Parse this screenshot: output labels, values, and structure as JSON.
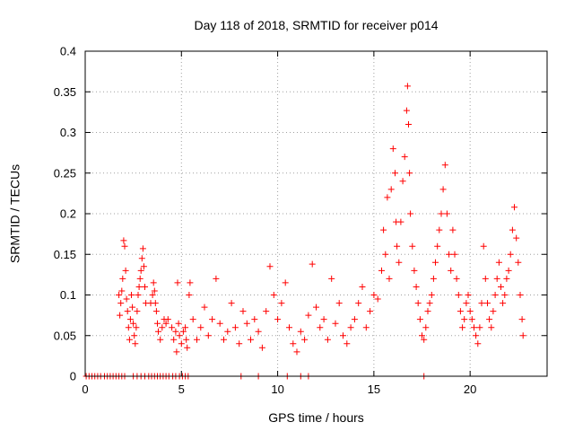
{
  "chart_data": {
    "type": "scatter",
    "title": "Day 118 of 2018, SRMTID for receiver p014",
    "xlabel": "GPS time / hours",
    "ylabel": "SRMTID / TECUs",
    "xlim": [
      0,
      24
    ],
    "ylim": [
      0,
      0.4
    ],
    "x_ticks": [
      0,
      5,
      10,
      15,
      20
    ],
    "x_tick_labels": [
      "0",
      "5",
      "10",
      "15",
      "20"
    ],
    "y_ticks": [
      0,
      0.05,
      0.1,
      0.15,
      0.2,
      0.25,
      0.3,
      0.35,
      0.4
    ],
    "y_tick_labels": [
      "0",
      "0.05",
      "0.1",
      "0.15",
      "0.2",
      "0.25",
      "0.3",
      "0.35",
      "0.4"
    ],
    "grid": true,
    "marker": "+",
    "series": [
      {
        "name": "SRMTID",
        "color": "#ff0000",
        "points": [
          [
            0.05,
            0
          ],
          [
            0.2,
            0
          ],
          [
            0.35,
            0
          ],
          [
            0.5,
            0
          ],
          [
            0.65,
            0
          ],
          [
            0.8,
            0
          ],
          [
            1.0,
            0
          ],
          [
            1.15,
            0
          ],
          [
            1.3,
            0
          ],
          [
            1.45,
            0
          ],
          [
            1.6,
            0
          ],
          [
            1.75,
            0
          ],
          [
            1.9,
            0
          ],
          [
            2.05,
            0
          ],
          [
            2.5,
            0
          ],
          [
            2.7,
            0
          ],
          [
            2.9,
            0
          ],
          [
            3.1,
            0
          ],
          [
            3.3,
            0
          ],
          [
            3.45,
            0
          ],
          [
            3.6,
            0
          ],
          [
            3.75,
            0
          ],
          [
            3.9,
            0
          ],
          [
            4.05,
            0
          ],
          [
            4.2,
            0
          ],
          [
            4.35,
            0
          ],
          [
            4.55,
            0
          ],
          [
            4.7,
            0
          ],
          [
            4.9,
            0
          ],
          [
            5.05,
            0
          ],
          [
            5.2,
            0
          ],
          [
            5.35,
            0
          ],
          [
            8.1,
            0
          ],
          [
            9.0,
            0
          ],
          [
            10.5,
            0
          ],
          [
            11.2,
            0
          ],
          [
            11.6,
            0
          ],
          [
            17.6,
            0
          ],
          [
            1.75,
            0.1
          ],
          [
            1.8,
            0.075
          ],
          [
            1.85,
            0.09
          ],
          [
            1.9,
            0.105
          ],
          [
            1.95,
            0.12
          ],
          [
            2.0,
            0.167
          ],
          [
            2.05,
            0.16
          ],
          [
            2.1,
            0.13
          ],
          [
            2.15,
            0.095
          ],
          [
            2.2,
            0.08
          ],
          [
            2.25,
            0.06
          ],
          [
            2.3,
            0.045
          ],
          [
            2.35,
            0.07
          ],
          [
            2.4,
            0.1
          ],
          [
            2.45,
            0.085
          ],
          [
            2.5,
            0.065
          ],
          [
            2.55,
            0.05
          ],
          [
            2.6,
            0.04
          ],
          [
            2.65,
            0.06
          ],
          [
            2.7,
            0.08
          ],
          [
            2.75,
            0.1
          ],
          [
            2.8,
            0.11
          ],
          [
            2.85,
            0.12
          ],
          [
            2.9,
            0.13
          ],
          [
            2.95,
            0.145
          ],
          [
            3.0,
            0.157
          ],
          [
            3.05,
            0.135
          ],
          [
            3.1,
            0.11
          ],
          [
            3.15,
            0.09
          ],
          [
            3.4,
            0.09
          ],
          [
            3.5,
            0.1
          ],
          [
            3.55,
            0.115
          ],
          [
            3.6,
            0.105
          ],
          [
            3.65,
            0.09
          ],
          [
            3.7,
            0.08
          ],
          [
            3.75,
            0.065
          ],
          [
            3.8,
            0.055
          ],
          [
            3.9,
            0.045
          ],
          [
            4.0,
            0.06
          ],
          [
            4.1,
            0.07
          ],
          [
            4.2,
            0.065
          ],
          [
            4.3,
            0.07
          ],
          [
            4.5,
            0.06
          ],
          [
            4.6,
            0.045
          ],
          [
            4.7,
            0.055
          ],
          [
            4.75,
            0.03
          ],
          [
            4.8,
            0.115
          ],
          [
            4.85,
            0.065
          ],
          [
            4.9,
            0.05
          ],
          [
            5.0,
            0.04
          ],
          [
            5.1,
            0.055
          ],
          [
            5.2,
            0.06
          ],
          [
            5.25,
            0.045
          ],
          [
            5.3,
            0.035
          ],
          [
            5.4,
            0.1
          ],
          [
            5.45,
            0.115
          ],
          [
            5.6,
            0.07
          ],
          [
            5.8,
            0.045
          ],
          [
            6.0,
            0.06
          ],
          [
            6.2,
            0.085
          ],
          [
            6.4,
            0.05
          ],
          [
            6.6,
            0.07
          ],
          [
            6.8,
            0.12
          ],
          [
            7.0,
            0.065
          ],
          [
            7.2,
            0.045
          ],
          [
            7.4,
            0.055
          ],
          [
            7.6,
            0.09
          ],
          [
            7.8,
            0.06
          ],
          [
            8.0,
            0.04
          ],
          [
            8.2,
            0.08
          ],
          [
            8.4,
            0.065
          ],
          [
            8.6,
            0.045
          ],
          [
            8.8,
            0.07
          ],
          [
            9.0,
            0.055
          ],
          [
            9.2,
            0.035
          ],
          [
            9.4,
            0.08
          ],
          [
            9.6,
            0.135
          ],
          [
            9.8,
            0.1
          ],
          [
            10.0,
            0.07
          ],
          [
            10.2,
            0.09
          ],
          [
            10.4,
            0.115
          ],
          [
            10.6,
            0.06
          ],
          [
            10.8,
            0.04
          ],
          [
            11.0,
            0.03
          ],
          [
            11.2,
            0.055
          ],
          [
            11.4,
            0.045
          ],
          [
            11.6,
            0.075
          ],
          [
            11.8,
            0.138
          ],
          [
            12.0,
            0.085
          ],
          [
            12.2,
            0.06
          ],
          [
            12.4,
            0.07
          ],
          [
            12.6,
            0.045
          ],
          [
            12.8,
            0.12
          ],
          [
            13.0,
            0.065
          ],
          [
            13.2,
            0.09
          ],
          [
            13.4,
            0.05
          ],
          [
            13.6,
            0.04
          ],
          [
            13.8,
            0.06
          ],
          [
            14.0,
            0.07
          ],
          [
            14.2,
            0.09
          ],
          [
            14.4,
            0.11
          ],
          [
            14.6,
            0.06
          ],
          [
            14.8,
            0.08
          ],
          [
            15.0,
            0.1
          ],
          [
            15.2,
            0.095
          ],
          [
            15.4,
            0.13
          ],
          [
            15.5,
            0.18
          ],
          [
            15.6,
            0.15
          ],
          [
            15.7,
            0.22
          ],
          [
            15.8,
            0.12
          ],
          [
            15.9,
            0.23
          ],
          [
            16.0,
            0.28
          ],
          [
            16.1,
            0.25
          ],
          [
            16.15,
            0.19
          ],
          [
            16.2,
            0.16
          ],
          [
            16.3,
            0.14
          ],
          [
            16.4,
            0.19
          ],
          [
            16.5,
            0.24
          ],
          [
            16.6,
            0.27
          ],
          [
            16.7,
            0.327
          ],
          [
            16.75,
            0.357
          ],
          [
            16.8,
            0.31
          ],
          [
            16.85,
            0.25
          ],
          [
            16.9,
            0.2
          ],
          [
            17.0,
            0.16
          ],
          [
            17.1,
            0.13
          ],
          [
            17.2,
            0.11
          ],
          [
            17.3,
            0.09
          ],
          [
            17.4,
            0.07
          ],
          [
            17.5,
            0.05
          ],
          [
            17.6,
            0.045
          ],
          [
            17.7,
            0.06
          ],
          [
            17.8,
            0.08
          ],
          [
            17.9,
            0.09
          ],
          [
            18.0,
            0.1
          ],
          [
            18.1,
            0.12
          ],
          [
            18.2,
            0.14
          ],
          [
            18.3,
            0.16
          ],
          [
            18.4,
            0.18
          ],
          [
            18.5,
            0.2
          ],
          [
            18.6,
            0.23
          ],
          [
            18.7,
            0.26
          ],
          [
            18.8,
            0.2
          ],
          [
            18.9,
            0.15
          ],
          [
            19.0,
            0.13
          ],
          [
            19.1,
            0.18
          ],
          [
            19.2,
            0.15
          ],
          [
            19.3,
            0.12
          ],
          [
            19.4,
            0.1
          ],
          [
            19.5,
            0.08
          ],
          [
            19.6,
            0.06
          ],
          [
            19.7,
            0.07
          ],
          [
            19.8,
            0.09
          ],
          [
            19.9,
            0.1
          ],
          [
            20.0,
            0.08
          ],
          [
            20.1,
            0.07
          ],
          [
            20.2,
            0.06
          ],
          [
            20.3,
            0.05
          ],
          [
            20.4,
            0.04
          ],
          [
            20.5,
            0.06
          ],
          [
            20.6,
            0.09
          ],
          [
            20.7,
            0.16
          ],
          [
            20.8,
            0.12
          ],
          [
            20.9,
            0.09
          ],
          [
            21.0,
            0.07
          ],
          [
            21.1,
            0.06
          ],
          [
            21.2,
            0.08
          ],
          [
            21.3,
            0.1
          ],
          [
            21.4,
            0.12
          ],
          [
            21.5,
            0.14
          ],
          [
            21.6,
            0.11
          ],
          [
            21.7,
            0.09
          ],
          [
            21.8,
            0.1
          ],
          [
            21.9,
            0.12
          ],
          [
            22.0,
            0.13
          ],
          [
            22.1,
            0.15
          ],
          [
            22.2,
            0.18
          ],
          [
            22.3,
            0.208
          ],
          [
            22.4,
            0.17
          ],
          [
            22.5,
            0.14
          ],
          [
            22.6,
            0.1
          ],
          [
            22.7,
            0.07
          ],
          [
            22.75,
            0.05
          ]
        ]
      }
    ]
  }
}
